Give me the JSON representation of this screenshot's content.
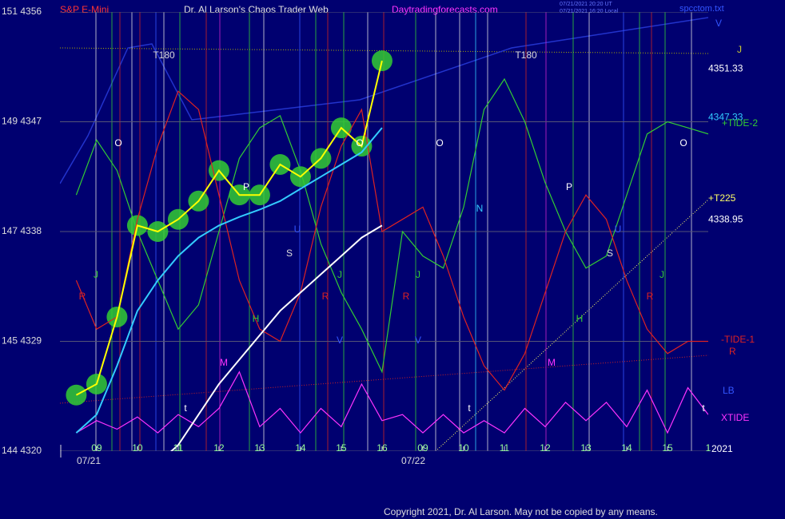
{
  "chart_data": {
    "type": "line",
    "symbol": "S&P E-Mini",
    "title": "Dr. Al Larson's Chaos Trader Web",
    "site": "Daytradingforecasts.com",
    "timestamp_ut": "07/21/2021 20:20 UT",
    "timestamp_local": "07/21/2021 16:20 Local",
    "file": "spcctom.txt",
    "copyright": "Copyright 2021, Dr. Al Larson. May not be copied by any means.",
    "date_labels": [
      "07/21",
      "07/22"
    ],
    "xlim": [
      -0.9,
      15
    ],
    "xticks": [
      {
        "value": 0,
        "label": "09"
      },
      {
        "value": 1,
        "label": "10"
      },
      {
        "value": 2,
        "label": "11"
      },
      {
        "value": 3,
        "label": "12"
      },
      {
        "value": 4,
        "label": "13"
      },
      {
        "value": 5,
        "label": "14"
      },
      {
        "value": 6,
        "label": "15"
      },
      {
        "value": 7,
        "label": "16"
      },
      {
        "value": 8,
        "label": "09"
      },
      {
        "value": 9,
        "label": "10"
      },
      {
        "value": 10,
        "label": "11"
      },
      {
        "value": 11,
        "label": "12"
      },
      {
        "value": 12,
        "label": "13"
      },
      {
        "value": 13,
        "label": "14"
      },
      {
        "value": 14,
        "label": "15"
      },
      {
        "value": 15,
        "label": "1"
      }
    ],
    "ylim": [
      4320,
      4356
    ],
    "yticks": [
      {
        "value": 4320,
        "label": "144  4320"
      },
      {
        "value": 4329,
        "label": "145  4329"
      },
      {
        "value": 4338,
        "label": "147  4338"
      },
      {
        "value": 4347,
        "label": "149  4347"
      },
      {
        "value": 4356,
        "label": "151  4356"
      }
    ],
    "grid": true,
    "levels": [
      4351.33,
      4347.33,
      4338.95
    ],
    "right_labels": [
      "V",
      "J",
      "+T225",
      "R",
      "LB",
      "2021"
    ],
    "annotations": [
      "T180",
      "T180",
      "O",
      "O",
      "O",
      "O",
      "J",
      "J",
      "J",
      "J",
      "R",
      "R",
      "R",
      "R",
      "P",
      "P",
      "U",
      "U",
      "S",
      "S",
      "H",
      "H",
      "M",
      "M",
      "V",
      "V",
      "N",
      "t",
      "t",
      "t"
    ],
    "x": [
      -0.5,
      0,
      0.5,
      1,
      1.5,
      2,
      2.5,
      3,
      3.5,
      4,
      4.5,
      5,
      5.5,
      6,
      6.5,
      7,
      7.5,
      8,
      8.5,
      9,
      9.5,
      10,
      10.5,
      11,
      11.5,
      12,
      12.5,
      13,
      13.5,
      14,
      14.5,
      15
    ],
    "series": [
      {
        "name": "+TIDE-2",
        "color": "#33cc33",
        "values": [
          4341,
          4345.5,
          4343,
          4338,
          4334,
          4330,
          4332,
          4338,
          4344,
          4346.5,
          4347.5,
          4343,
          4337,
          4333,
          4330,
          4326.5,
          4338,
          4336,
          4335,
          4340,
          4348,
          4350.5,
          4347,
          4342,
          4338,
          4335,
          4336,
          4341,
          4346,
          4347,
          4346.5,
          4346
        ]
      },
      {
        "name": "-TIDE-1",
        "color": "#dd2222",
        "values": [
          4334,
          4330,
          4331,
          4339,
          4345,
          4349.5,
          4348,
          4341,
          4334,
          4330,
          4329,
          4333,
          4340,
          4345,
          4348,
          4338,
          4339,
          4340,
          4336,
          4331,
          4327,
          4325,
          4328,
          4333,
          4338,
          4341,
          4339,
          4334,
          4330,
          4328,
          4329,
          4329
        ]
      },
      {
        "name": "XTIDE",
        "color": "#ff33ff",
        "values": [
          4321.5,
          4322.5,
          4321.8,
          4322.8,
          4321.5,
          4323,
          4322,
          4323.5,
          4326.5,
          4322,
          4323.5,
          4321.5,
          4323.5,
          4322,
          4325.5,
          4322.5,
          4323,
          4321.5,
          4323,
          4321.5,
          4322.5,
          4321.5,
          4323.5,
          4322,
          4324,
          4322.5,
          4324,
          4322,
          4325,
          4321.5,
          4325.2,
          4323
        ]
      },
      {
        "color": "#ffffff",
        "values": [
          null,
          null,
          null,
          null,
          4319,
          4320.5,
          4323,
          4325.5,
          4327.5,
          4329.5,
          4331.5,
          4333,
          4334.5,
          4336,
          4337.5,
          4338.5,
          null,
          null,
          null,
          null,
          null,
          null,
          null,
          null,
          null,
          null,
          null,
          null,
          null,
          null,
          null,
          null
        ]
      },
      {
        "color": "#33ccff",
        "values": [
          4321.5,
          4323,
          4327,
          4331.5,
          4334,
          4336,
          4337.5,
          4338.5,
          4339.2,
          4339.8,
          4340.5,
          4341.5,
          4342.5,
          4343.5,
          4344.5,
          4346.5,
          null,
          null,
          null,
          null,
          null,
          null,
          null,
          null,
          null,
          null,
          null,
          null,
          null,
          null,
          null,
          null
        ]
      },
      {
        "color": "#ffff00",
        "values": [
          4324.6,
          4325.5,
          4331,
          4338.5,
          4338,
          4339,
          4340.5,
          4343,
          4341,
          4341,
          4343.5,
          4342.5,
          4344,
          4346.5,
          4345,
          4352,
          null,
          null,
          null,
          null,
          null,
          null,
          null,
          null,
          null,
          null,
          null,
          null,
          null,
          null,
          null,
          null
        ]
      }
    ]
  }
}
